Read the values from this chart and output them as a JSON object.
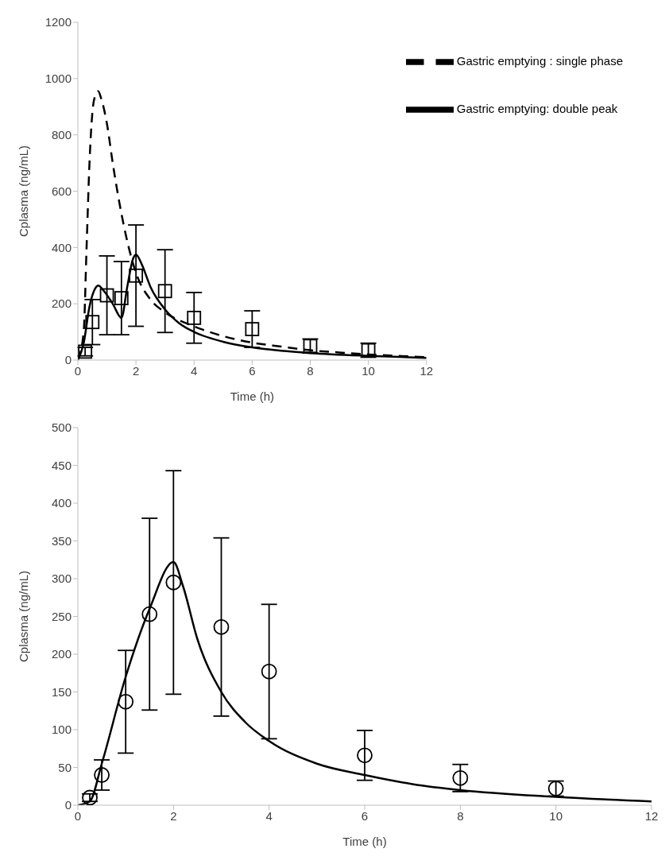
{
  "chart_data": [
    {
      "type": "line",
      "xlabel": "Time (h)",
      "ylabel": "Cplasma (ng/mL)",
      "xlim": [
        0,
        12
      ],
      "xticks": [
        0,
        2,
        4,
        6,
        8,
        10,
        12
      ],
      "ylim": [
        0,
        1200
      ],
      "yticks": [
        0,
        200,
        400,
        600,
        800,
        1000,
        1200
      ],
      "legend": "top right",
      "grid": false,
      "series": [
        {
          "name": "Gastric emptying : single phase",
          "color": "#000000",
          "line_style": "dashed",
          "marker": "none",
          "x": [
            0,
            0.2,
            0.3,
            0.4,
            0.5,
            0.6,
            0.7,
            0.8,
            1,
            1.2,
            1.5,
            1.8,
            2,
            2.5,
            3,
            4,
            5,
            6,
            7,
            8,
            9,
            10,
            11,
            12
          ],
          "values": [
            0,
            100,
            400,
            700,
            880,
            940,
            955,
            930,
            840,
            700,
            520,
            380,
            310,
            215,
            170,
            120,
            85,
            62,
            48,
            35,
            27,
            20,
            15,
            10
          ]
        },
        {
          "name": "Gastric emptying: double peak",
          "color": "#000000",
          "line_style": "solid",
          "marker": "none",
          "x": [
            0,
            0.2,
            0.4,
            0.6,
            0.7,
            0.9,
            1.2,
            1.5,
            1.7,
            1.9,
            2,
            2.2,
            2.5,
            3,
            3.5,
            4,
            5,
            6,
            7,
            8,
            10,
            12
          ],
          "values": [
            0,
            60,
            190,
            255,
            265,
            245,
            200,
            150,
            260,
            360,
            375,
            340,
            260,
            180,
            130,
            100,
            65,
            45,
            33,
            25,
            15,
            8
          ]
        },
        {
          "type": "scatter",
          "color": "#000000",
          "marker": "square",
          "x": [
            0.25,
            0.5,
            1,
            1.5,
            2,
            3,
            4,
            6,
            8,
            10
          ],
          "values": [
            30,
            135,
            230,
            220,
            300,
            245,
            150,
            110,
            50,
            35
          ],
          "errors": [
            15,
            80,
            140,
            130,
            180,
            147,
            90,
            65,
            25,
            25
          ]
        }
      ]
    },
    {
      "type": "line",
      "xlabel": "Time (h)",
      "ylabel": "Cplasma (ng/mL)",
      "xlim": [
        0,
        12
      ],
      "xticks": [
        0,
        2,
        4,
        6,
        8,
        10,
        12
      ],
      "ylim": [
        0,
        500
      ],
      "yticks": [
        0,
        50,
        100,
        150,
        200,
        250,
        300,
        350,
        400,
        450,
        500
      ],
      "legend": false,
      "grid": false,
      "series": [
        {
          "color": "#000000",
          "line_style": "solid",
          "marker": "none",
          "x": [
            0,
            0.25,
            0.5,
            1,
            1.5,
            2,
            2.2,
            2.5,
            3,
            3.5,
            4,
            5,
            6,
            7,
            8,
            10,
            12
          ],
          "values": [
            0,
            5,
            55,
            170,
            260,
            322,
            290,
            220,
            150,
            110,
            85,
            55,
            40,
            28,
            20,
            11,
            5
          ]
        },
        {
          "type": "scatter",
          "color": "#000000",
          "marker": "circle",
          "x": [
            0.25,
            0.5,
            1,
            1.5,
            2,
            3,
            4,
            6,
            8,
            10
          ],
          "values": [
            10,
            40,
            137,
            253,
            295,
            236,
            177,
            66,
            36,
            22
          ],
          "errors": [
            5,
            20,
            68,
            127,
            148,
            118,
            89,
            33,
            18,
            10
          ]
        }
      ]
    }
  ]
}
